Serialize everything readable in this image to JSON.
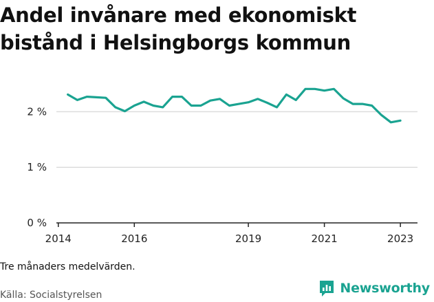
{
  "title": "Andel invånare med ekonomiskt bistånd i Helsingborgs kommun",
  "note": "Tre månaders medelvärden.",
  "source": "Källa: Socialstyrelsen",
  "brand": {
    "name": "Newsworthy",
    "icon": "newsworthy-logo-icon",
    "color": "#1aa391"
  },
  "chart_data": {
    "type": "line",
    "title": "Andel invånare med ekonomiskt bistånd i Helsingborgs kommun",
    "xlabel": "",
    "ylabel": "",
    "x_ticks": [
      "2014",
      "2016",
      "2019",
      "2021",
      "2023"
    ],
    "y_ticks": [
      "0 %",
      "1 %",
      "2 %"
    ],
    "ylim": [
      0,
      2.5
    ],
    "grid": "horizontal",
    "line_color": "#1aa391",
    "series": [
      {
        "x": [
          2014.25,
          2014.5,
          2014.75,
          2015.0,
          2015.25,
          2015.5,
          2015.75,
          2016.0,
          2016.25,
          2016.5,
          2016.75,
          2017.0,
          2017.25,
          2017.5,
          2017.75,
          2018.0,
          2018.25,
          2018.5,
          2018.75,
          2019.0,
          2019.25,
          2019.5,
          2019.75,
          2020.0,
          2020.25,
          2020.5,
          2020.75,
          2021.0,
          2021.25,
          2021.5,
          2021.75,
          2022.0,
          2022.25,
          2022.5,
          2022.75,
          2023.0
        ],
        "values": [
          2.31,
          2.21,
          2.27,
          2.26,
          2.25,
          2.08,
          2.01,
          2.11,
          2.18,
          2.11,
          2.08,
          2.27,
          2.27,
          2.11,
          2.11,
          2.2,
          2.23,
          2.11,
          2.14,
          2.17,
          2.23,
          2.16,
          2.08,
          2.31,
          2.21,
          2.41,
          2.41,
          2.38,
          2.41,
          2.24,
          2.14,
          2.14,
          2.11,
          1.94,
          1.81,
          1.84
        ]
      }
    ]
  }
}
